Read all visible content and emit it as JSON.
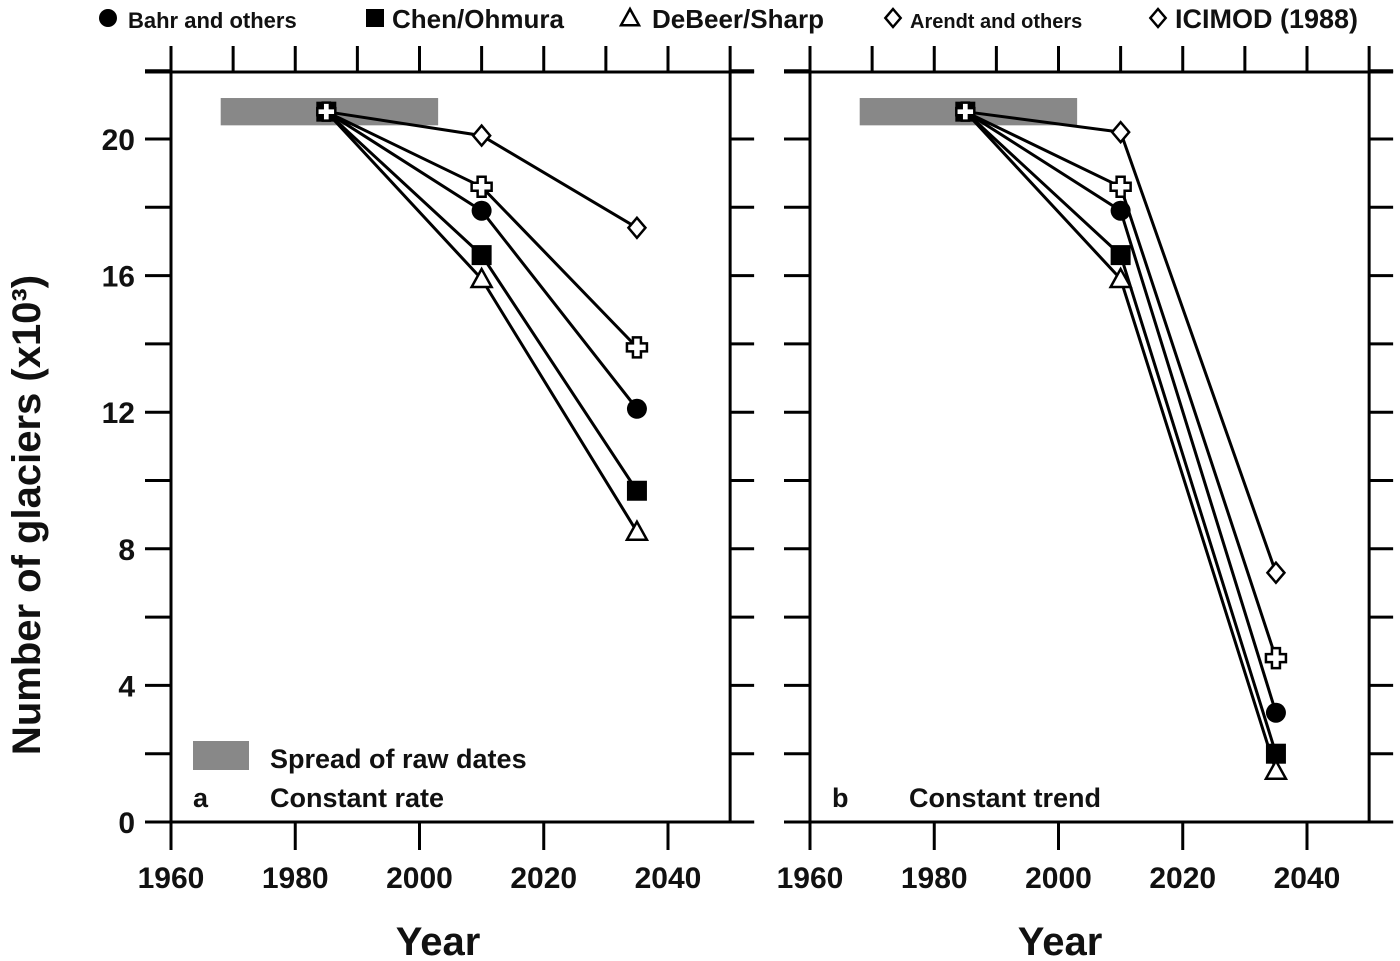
{
  "chart_data": {
    "type": "line",
    "legend": {
      "placement": "top",
      "entries": [
        {
          "name": "Bahr and others",
          "marker": "filled-circle"
        },
        {
          "name": "Chen/Ohmura",
          "marker": "filled-square"
        },
        {
          "name": "DeBeer/Sharp",
          "marker": "open-triangle"
        },
        {
          "name": "Arendt and others",
          "marker": "open-diamond"
        },
        {
          "name": "ICIMOD (1988)",
          "marker": "open-diamond"
        }
      ]
    },
    "ylabel": "Number of glaciers (x10³)",
    "xlabel": "Year",
    "xlim": [
      1960,
      2050
    ],
    "ylim": [
      0,
      22
    ],
    "xticks": [
      "1960",
      "1980",
      "2000",
      "2020",
      "2040"
    ],
    "yticks": [
      "0",
      "4",
      "8",
      "12",
      "16",
      "20"
    ],
    "spread_label": "Spread of raw dates",
    "spread_color": "#888888",
    "spread_range": {
      "x": [
        1968,
        2003
      ],
      "y": [
        20.4,
        21.2
      ]
    },
    "panels": [
      {
        "letter": "a",
        "title": "Constant rate",
        "x": [
          1985,
          2010,
          2035
        ],
        "series": [
          {
            "name": "Bahr and others",
            "marker": "circle",
            "values": [
              20.8,
              17.9,
              12.1
            ]
          },
          {
            "name": "Chen/Ohmura",
            "marker": "square",
            "values": [
              20.8,
              16.6,
              9.7
            ]
          },
          {
            "name": "DeBeer/Sharp",
            "marker": "triangle",
            "values": [
              20.8,
              15.9,
              8.5
            ]
          },
          {
            "name": "Arendt and others",
            "marker": "diamond",
            "values": [
              20.8,
              20.1,
              17.4
            ]
          },
          {
            "name": "ICIMOD (1988)",
            "marker": "cross",
            "values": [
              20.8,
              18.6,
              13.9
            ]
          }
        ]
      },
      {
        "letter": "b",
        "title": "Constant trend",
        "x": [
          1985,
          2010,
          2035
        ],
        "series": [
          {
            "name": "Bahr and others",
            "marker": "circle",
            "values": [
              20.8,
              17.9,
              3.2
            ]
          },
          {
            "name": "Chen/Ohmura",
            "marker": "square",
            "values": [
              20.8,
              16.6,
              2.0
            ]
          },
          {
            "name": "DeBeer/Sharp",
            "marker": "triangle",
            "values": [
              20.8,
              15.9,
              1.5
            ]
          },
          {
            "name": "Arendt and others",
            "marker": "diamond",
            "values": [
              20.8,
              20.2,
              7.3
            ]
          },
          {
            "name": "ICIMOD (1988)",
            "marker": "cross",
            "values": [
              20.8,
              18.6,
              4.8
            ]
          }
        ]
      }
    ]
  }
}
